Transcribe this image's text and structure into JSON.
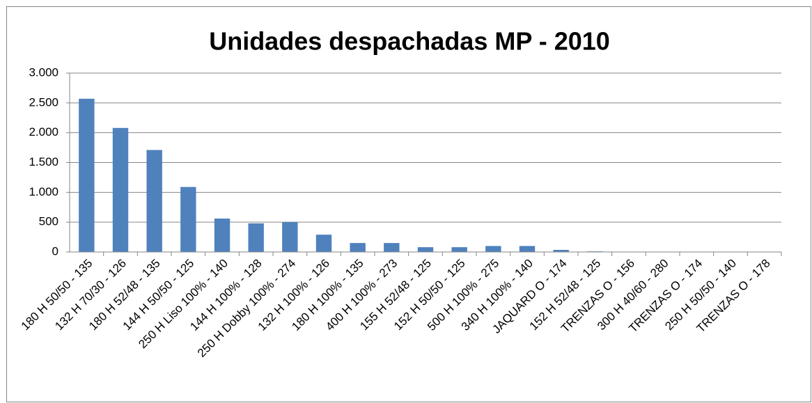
{
  "chart_data": {
    "type": "bar",
    "title": "Unidades despachadas MP - 2010",
    "categories": [
      "180 H 50/50 - 135",
      "132 H 70/30 - 126",
      "180 H 52/48 - 135",
      "144 H 50/50 - 125",
      "250 H Liso 100% - 140",
      "144 H 100% - 128",
      "250 H Dobby 100% - 274",
      "132 H 100% - 126",
      "180 H 100% - 135",
      "400 H 100% - 273",
      "155 H 52/48 - 125",
      "152 H 50/50 - 125",
      "500 H 100% - 275",
      "340 H 100% - 140",
      "JAQUARD O - 174",
      "152 H 52/48 - 125",
      "TRENZAS O - 156",
      "300 H 40/60 - 280",
      "TRENZAS O - 174",
      "250 H 50/50 - 140",
      "TRENZAS O - 178"
    ],
    "values": [
      2570,
      2080,
      1710,
      1090,
      560,
      480,
      500,
      290,
      150,
      150,
      80,
      80,
      100,
      100,
      35,
      10,
      0,
      0,
      0,
      0,
      0
    ],
    "color": "#4f81bd",
    "ylim": [
      0,
      3000
    ],
    "yticks": [
      0,
      500,
      {
        "value": 1000,
        "label": "1.000"
      },
      {
        "value": 1500,
        "label": "1.500"
      },
      {
        "value": 2000,
        "label": "2.000"
      },
      {
        "value": 2500,
        "label": "2.500"
      },
      {
        "value": 3000,
        "label": "3.000"
      }
    ],
    "grid": true
  }
}
